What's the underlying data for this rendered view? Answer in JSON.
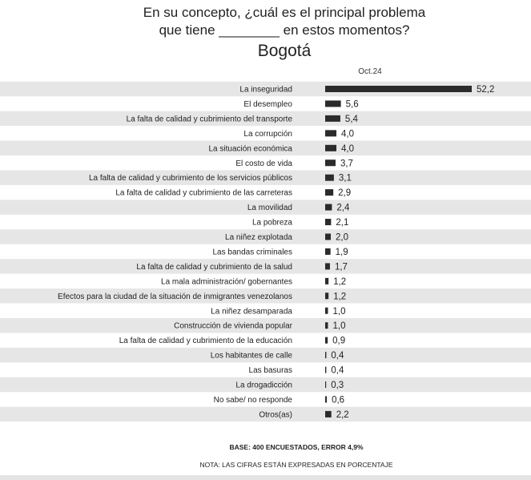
{
  "question": {
    "line1": "En su concepto, ¿cuál es el principal problema",
    "line2": "que tiene ________ en estos momentos?"
  },
  "city": "Bogotá",
  "period": "Oct.24",
  "colors": {
    "bar": "#2b2b2b",
    "stripe": "#e6e6e6",
    "text": "#222222"
  },
  "chart_data": {
    "type": "bar",
    "orientation": "horizontal",
    "title": "Bogotá",
    "series": [
      {
        "name": "Oct.24",
        "values": [
          52.2,
          5.6,
          5.4,
          4.0,
          4.0,
          3.7,
          3.1,
          2.9,
          2.4,
          2.1,
          2.0,
          1.9,
          1.7,
          1.2,
          1.2,
          1.0,
          1.0,
          0.9,
          0.4,
          0.4,
          0.3,
          0.6,
          2.2
        ]
      }
    ],
    "categories": [
      "La inseguridad",
      "El desempleo",
      "La falta de calidad y cubrimiento del transporte",
      "La corrupción",
      "La situación económica",
      "El costo de vida",
      "La falta de calidad y cubrimiento de los servicios públicos",
      "La falta de calidad y cubrimiento de las carreteras",
      "La movilidad",
      "La pobreza",
      "La niñez explotada",
      "Las bandas criminales",
      "La falta de calidad y cubrimiento de la salud",
      "La mala administración/ gobernantes",
      "Efectos para la ciudad de la situación de inmigrantes venezolanos",
      "La niñez desamparada",
      "Construcción de vivienda popular",
      "La falta de calidad y cubrimiento de la educación",
      "Los habitantes de calle",
      "Las basuras",
      "La drogadicción",
      "No sabe/ no responde",
      "Otros(as)"
    ],
    "value_labels": [
      "52,2",
      "5,6",
      "5,4",
      "4,0",
      "4,0",
      "3,7",
      "3,1",
      "2,9",
      "2,4",
      "2,1",
      "2,0",
      "1,9",
      "1,7",
      "1,2",
      "1,2",
      "1,0",
      "1,0",
      "0,9",
      "0,4",
      "0,4",
      "0,3",
      "0,6",
      "2,2"
    ],
    "xlim": [
      0,
      52.2
    ],
    "grid": false,
    "legend": "none"
  },
  "footer": {
    "base": "BASE: 400 ENCUESTADOS, ERROR 4,9%",
    "note": "NOTA: LAS CIFRAS ESTÁN EXPRESADAS EN PORCENTAJE"
  }
}
